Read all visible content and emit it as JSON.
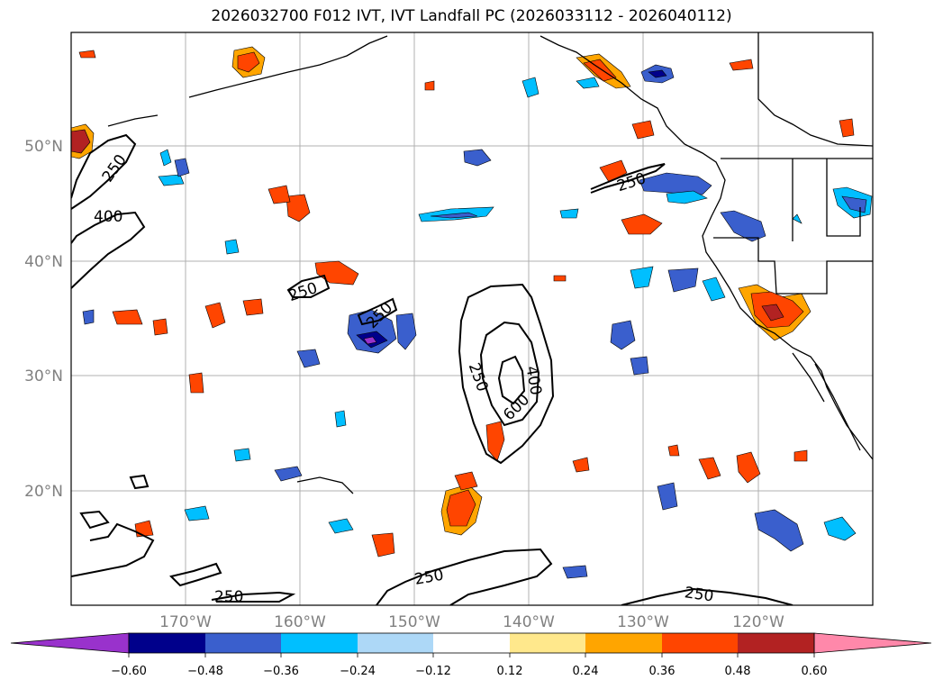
{
  "title": "2026032700 F012 IVT, IVT Landfall PC (2026033112 - 2026040112)",
  "map": {
    "lat_labels": [
      "50°N",
      "40°N",
      "30°N",
      "20°N"
    ],
    "lon_labels": [
      "170°W",
      "160°W",
      "150°W",
      "140°W",
      "130°W",
      "120°W"
    ]
  },
  "contour_labels": [
    "250",
    "400",
    "250",
    "250",
    "400",
    "600",
    "250",
    "250",
    "250",
    "250",
    "250"
  ],
  "colorbar": {
    "ticks": [
      "−0.60",
      "−0.48",
      "−0.36",
      "−0.24",
      "−0.12",
      "0.12",
      "0.24",
      "0.36",
      "0.48",
      "0.60"
    ],
    "colors": [
      "#9932CC",
      "#00008B",
      "#3A5FCD",
      "#00BFFF",
      "#ADD8F7",
      "#FFFFFF",
      "#FFE88C",
      "#FFA500",
      "#FF4500",
      "#B22222",
      "#FF88AA"
    ]
  },
  "palette": {
    "contour": "#000000",
    "coast": "#000000",
    "grid": "#b0b0b0"
  }
}
